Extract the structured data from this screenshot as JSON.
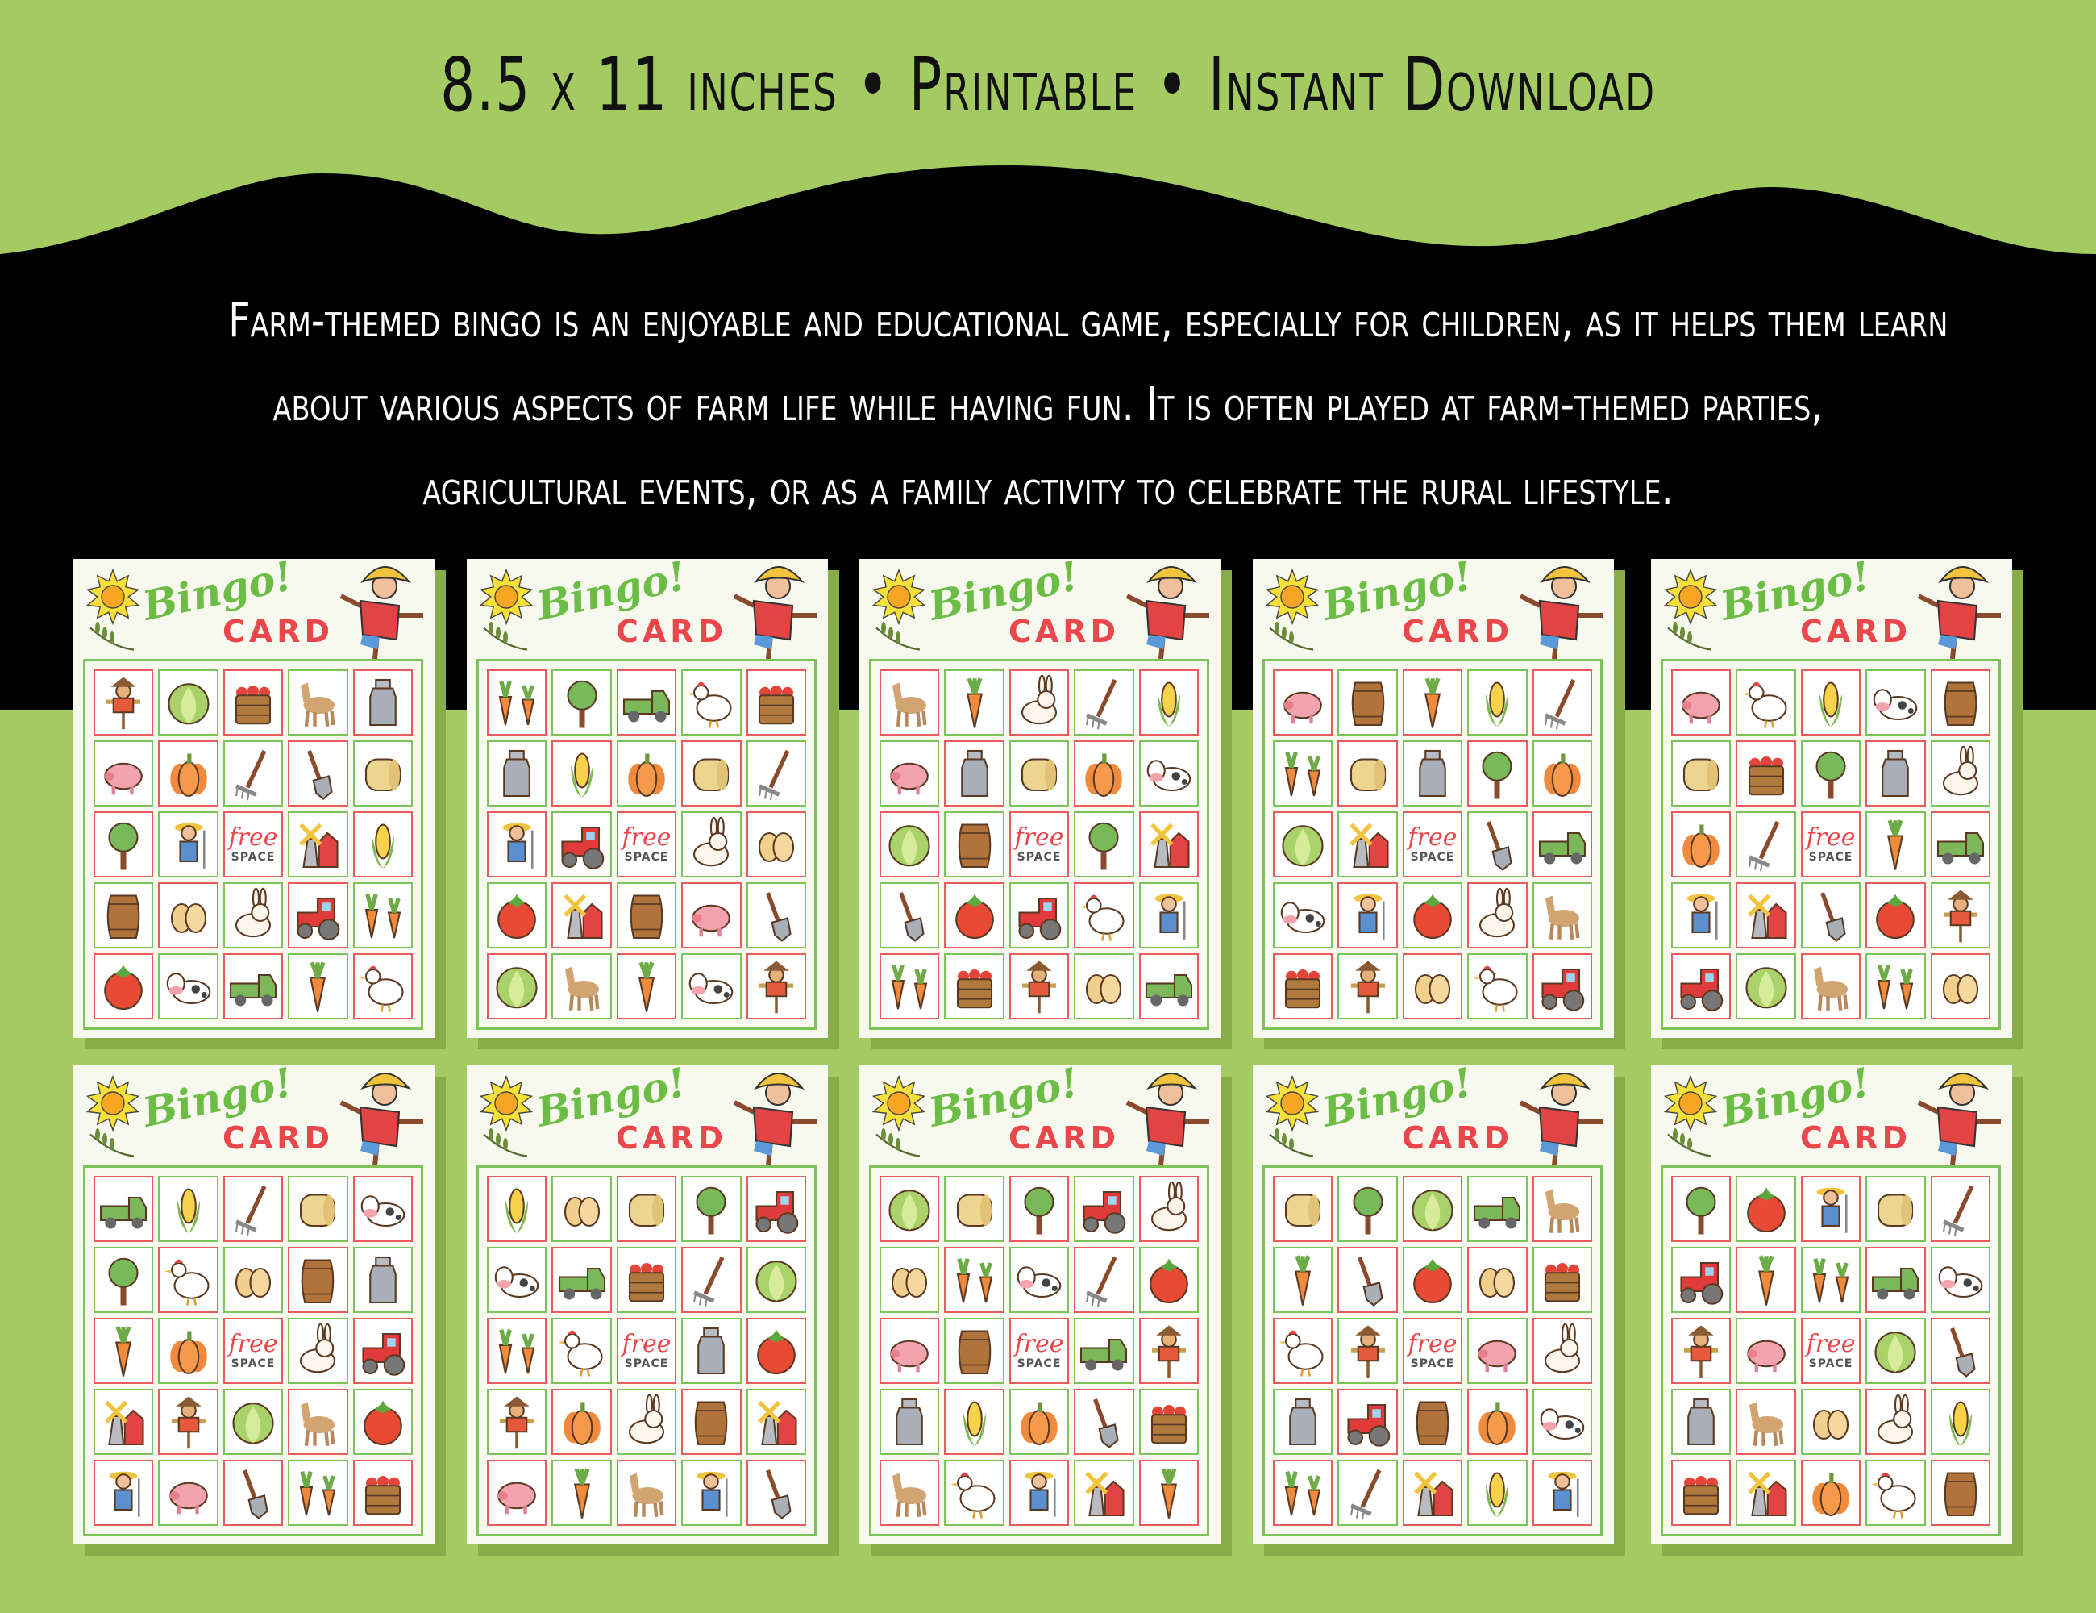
{
  "header": {
    "tagline": "8.5 x 11 inches • Printable • Instant Download",
    "description_lines": [
      "Farm-themed bingo is an enjoyable and educational game, especially for children, as it helps them learn",
      "about various aspects of farm life while having fun. It is often played at farm-themed parties,",
      "agricultural events, or as a family activity to celebrate the rural lifestyle."
    ]
  },
  "colors": {
    "background": "#a3cb61",
    "band": "#000000",
    "card": "#f8f9ee",
    "grid_green": "#7cc35a",
    "grid_red": "#ea5a5e",
    "bingo_green": "#6cbd45",
    "card_red": "#e9474c"
  },
  "card_labels": {
    "bingo": "Bingo!",
    "card": "CARD",
    "free": "free",
    "space": "SPACE"
  },
  "cards": [
    {
      "grid": [
        [
          "scarecrow",
          "cabbage",
          "basket",
          "horse",
          "milk-can"
        ],
        [
          "pig",
          "pumpkin",
          "rake",
          "shovel",
          "hay"
        ],
        [
          "tree",
          "farmer",
          "free",
          "barn",
          "corn"
        ],
        [
          "barrel",
          "eggs",
          "rabbit",
          "tractor",
          "carrots"
        ],
        [
          "tomato",
          "cow",
          "truck",
          "carrot",
          "chicken"
        ]
      ]
    },
    {
      "grid": [
        [
          "carrots",
          "tree",
          "truck",
          "chicken",
          "basket"
        ],
        [
          "milk-can",
          "corn",
          "pumpkin",
          "hay",
          "rake"
        ],
        [
          "farmer",
          "tractor",
          "free",
          "rabbit",
          "eggs"
        ],
        [
          "tomato",
          "barn",
          "barrel",
          "pig",
          "shovel"
        ],
        [
          "cabbage",
          "horse",
          "carrot",
          "cow",
          "scarecrow"
        ]
      ]
    },
    {
      "grid": [
        [
          "horse",
          "carrot",
          "rabbit",
          "rake",
          "corn"
        ],
        [
          "pig",
          "milk-can",
          "hay",
          "pumpkin",
          "cow"
        ],
        [
          "cabbage",
          "barrel",
          "free",
          "tree",
          "barn"
        ],
        [
          "shovel",
          "tomato",
          "tractor",
          "chicken",
          "farmer"
        ],
        [
          "carrots",
          "basket",
          "scarecrow",
          "eggs",
          "truck"
        ]
      ]
    },
    {
      "grid": [
        [
          "pig",
          "barrel",
          "carrot",
          "corn",
          "rake"
        ],
        [
          "carrots",
          "hay",
          "milk-can",
          "tree",
          "pumpkin"
        ],
        [
          "cabbage",
          "barn",
          "free",
          "shovel",
          "truck"
        ],
        [
          "cow",
          "farmer",
          "tomato",
          "rabbit",
          "horse"
        ],
        [
          "basket",
          "scarecrow",
          "eggs",
          "chicken",
          "tractor"
        ]
      ]
    },
    {
      "grid": [
        [
          "pig",
          "chicken",
          "corn",
          "cow",
          "barrel"
        ],
        [
          "hay",
          "basket",
          "tree",
          "milk-can",
          "rabbit"
        ],
        [
          "pumpkin",
          "rake",
          "free",
          "carrot",
          "truck"
        ],
        [
          "farmer",
          "barn",
          "shovel",
          "tomato",
          "scarecrow"
        ],
        [
          "tractor",
          "cabbage",
          "horse",
          "carrots",
          "eggs"
        ]
      ]
    },
    {
      "grid": [
        [
          "truck",
          "corn",
          "rake",
          "hay",
          "cow"
        ],
        [
          "tree",
          "chicken",
          "eggs",
          "barrel",
          "milk-can"
        ],
        [
          "carrot",
          "pumpkin",
          "free",
          "rabbit",
          "tractor"
        ],
        [
          "barn",
          "scarecrow",
          "cabbage",
          "horse",
          "tomato"
        ],
        [
          "farmer",
          "pig",
          "shovel",
          "carrots",
          "basket"
        ]
      ]
    },
    {
      "grid": [
        [
          "corn",
          "eggs",
          "hay",
          "tree",
          "tractor"
        ],
        [
          "cow",
          "truck",
          "basket",
          "rake",
          "cabbage"
        ],
        [
          "carrots",
          "chicken",
          "free",
          "milk-can",
          "tomato"
        ],
        [
          "scarecrow",
          "pumpkin",
          "rabbit",
          "barrel",
          "barn"
        ],
        [
          "pig",
          "carrot",
          "horse",
          "farmer",
          "shovel"
        ]
      ]
    },
    {
      "grid": [
        [
          "cabbage",
          "hay",
          "tree",
          "tractor",
          "rabbit"
        ],
        [
          "eggs",
          "carrots",
          "cow",
          "rake",
          "tomato"
        ],
        [
          "pig",
          "barrel",
          "free",
          "truck",
          "scarecrow"
        ],
        [
          "milk-can",
          "corn",
          "pumpkin",
          "shovel",
          "basket"
        ],
        [
          "horse",
          "chicken",
          "farmer",
          "barn",
          "carrot"
        ]
      ]
    },
    {
      "grid": [
        [
          "hay",
          "tree",
          "cabbage",
          "truck",
          "horse"
        ],
        [
          "carrot",
          "shovel",
          "tomato",
          "eggs",
          "basket"
        ],
        [
          "chicken",
          "scarecrow",
          "free",
          "pig",
          "rabbit"
        ],
        [
          "milk-can",
          "tractor",
          "barrel",
          "pumpkin",
          "cow"
        ],
        [
          "carrots",
          "rake",
          "barn",
          "corn",
          "farmer"
        ]
      ]
    },
    {
      "grid": [
        [
          "tree",
          "tomato",
          "farmer",
          "hay",
          "rake"
        ],
        [
          "tractor",
          "carrot",
          "carrots",
          "truck",
          "cow"
        ],
        [
          "scarecrow",
          "pig",
          "free",
          "cabbage",
          "shovel"
        ],
        [
          "milk-can",
          "horse",
          "eggs",
          "rabbit",
          "corn"
        ],
        [
          "basket",
          "barn",
          "pumpkin",
          "chicken",
          "barrel"
        ]
      ]
    }
  ]
}
